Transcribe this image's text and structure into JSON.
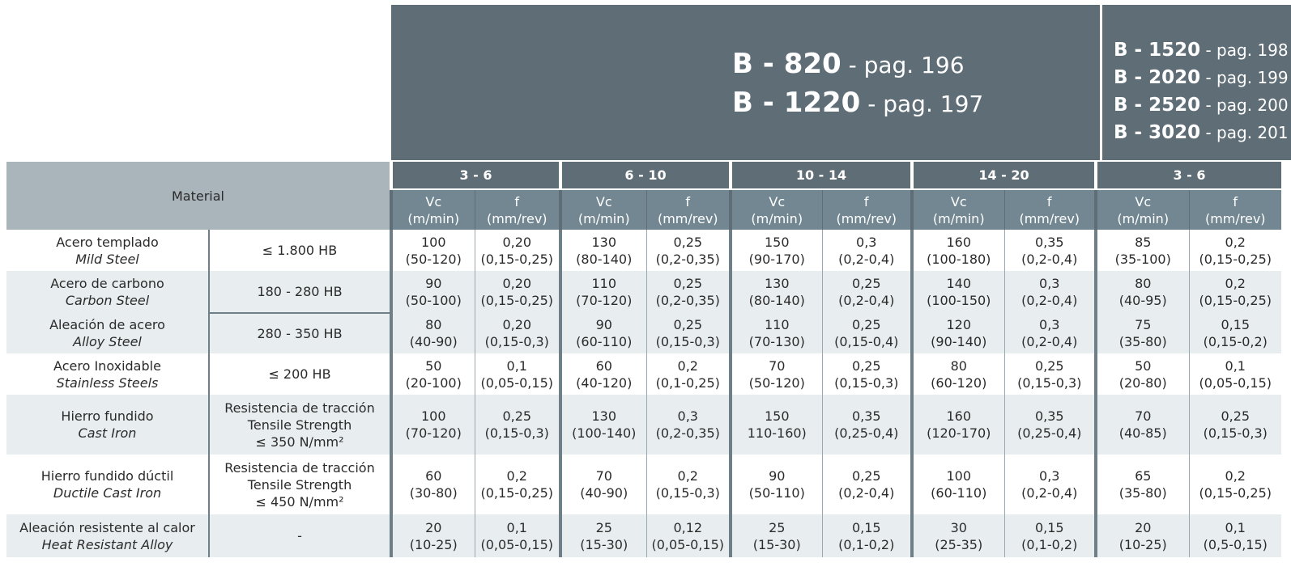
{
  "header": {
    "main_refs": [
      {
        "code": "B - 820",
        "page": " - pag. 196"
      },
      {
        "code": "B - 1220",
        "page": " - pag. 197"
      }
    ],
    "side_refs": [
      {
        "code": "B - 1520",
        "page": " - pag. 198"
      },
      {
        "code": "B - 2020",
        "page": " - pag. 199"
      },
      {
        "code": "B - 2520",
        "page": " - pag. 200"
      },
      {
        "code": "B - 3020",
        "page": " - pag. 201"
      }
    ]
  },
  "table": {
    "material_label": "Material",
    "diameter_ranges": [
      "3 - 6",
      "6 - 10",
      "10 - 14",
      "14 - 20",
      "3 - 6"
    ],
    "vc_label": "Vc",
    "vc_unit": "(m/min)",
    "f_label": "f",
    "f_unit": "(mm/rev)",
    "rows": [
      {
        "material_es": "Acero templado",
        "material_en": "Mild Steel",
        "hardness": [
          "≤ 1.800 HB"
        ],
        "values": [
          [
            "100",
            "(50-120)"
          ],
          [
            "0,20",
            "(0,15-0,25)"
          ],
          [
            "130",
            "(80-140)"
          ],
          [
            "0,25",
            "(0,2-0,35)"
          ],
          [
            "150",
            "(90-170)"
          ],
          [
            "0,3",
            "(0,2-0,4)"
          ],
          [
            "160",
            "(100-180)"
          ],
          [
            "0,35",
            "(0,2-0,4)"
          ],
          [
            "85",
            "(35-100)"
          ],
          [
            "0,2",
            "(0,15-0,25)"
          ]
        ]
      },
      {
        "material_es": "Acero de carbono",
        "material_en": "Carbon Steel",
        "hardness": [
          "180 - 280 HB"
        ],
        "values": [
          [
            "90",
            "(50-100)"
          ],
          [
            "0,20",
            "(0,15-0,25)"
          ],
          [
            "110",
            "(70-120)"
          ],
          [
            "0,25",
            "(0,2-0,35)"
          ],
          [
            "130",
            "(80-140)"
          ],
          [
            "0,25",
            "(0,2-0,4)"
          ],
          [
            "140",
            "(100-150)"
          ],
          [
            "0,3",
            "(0,2-0,4)"
          ],
          [
            "80",
            "(40-95)"
          ],
          [
            "0,2",
            "(0,15-0,25)"
          ]
        ]
      },
      {
        "material_es": "Aleación de acero",
        "material_en": "Alloy Steel",
        "hardness": [
          "280 - 350 HB"
        ],
        "values": [
          [
            "80",
            "(40-90)"
          ],
          [
            "0,20",
            "(0,15-0,3)"
          ],
          [
            "90",
            "(60-110)"
          ],
          [
            "0,25",
            "(0,15-0,3)"
          ],
          [
            "110",
            "(70-130)"
          ],
          [
            "0,25",
            "(0,15-0,4)"
          ],
          [
            "120",
            "(90-140)"
          ],
          [
            "0,3",
            "(0,2-0,4)"
          ],
          [
            "75",
            "(35-80)"
          ],
          [
            "0,15",
            "(0,15-0,2)"
          ]
        ]
      },
      {
        "material_es": "Acero Inoxidable",
        "material_en": "Stainless Steels",
        "hardness": [
          "≤ 200 HB"
        ],
        "values": [
          [
            "50",
            "(20-100)"
          ],
          [
            "0,1",
            "(0,05-0,15)"
          ],
          [
            "60",
            "(40-120)"
          ],
          [
            "0,2",
            "(0,1-0,25)"
          ],
          [
            "70",
            "(50-120)"
          ],
          [
            "0,25",
            "(0,15-0,3)"
          ],
          [
            "80",
            "(60-120)"
          ],
          [
            "0,25",
            "(0,15-0,3)"
          ],
          [
            "50",
            "(20-80)"
          ],
          [
            "0,1",
            "(0,05-0,15)"
          ]
        ]
      },
      {
        "material_es": "Hierro fundido",
        "material_en": "Cast Iron",
        "hardness": [
          "Resistencia de tracción",
          "Tensile Strength",
          "≤ 350 N/mm²"
        ],
        "values": [
          [
            "100",
            "(70-120)"
          ],
          [
            "0,25",
            "(0,15-0,3)"
          ],
          [
            "130",
            "(100-140)"
          ],
          [
            "0,3",
            "(0,2-0,35)"
          ],
          [
            "150",
            "110-160)"
          ],
          [
            "0,35",
            "(0,25-0,4)"
          ],
          [
            "160",
            "(120-170)"
          ],
          [
            "0,35",
            "(0,25-0,4)"
          ],
          [
            "70",
            "(40-85)"
          ],
          [
            "0,25",
            "(0,15-0,3)"
          ]
        ]
      },
      {
        "material_es": "Hierro fundido dúctil",
        "material_en": "Ductile Cast Iron",
        "hardness": [
          "Resistencia de tracción",
          "Tensile Strength",
          "≤ 450 N/mm²"
        ],
        "values": [
          [
            "60",
            "(30-80)"
          ],
          [
            "0,2",
            "(0,15-0,25)"
          ],
          [
            "70",
            "(40-90)"
          ],
          [
            "0,2",
            "(0,15-0,3)"
          ],
          [
            "90",
            "(50-110)"
          ],
          [
            "0,25",
            "(0,2-0,4)"
          ],
          [
            "100",
            "(60-110)"
          ],
          [
            "0,3",
            "(0,2-0,4)"
          ],
          [
            "65",
            "(35-80)"
          ],
          [
            "0,2",
            "(0,15-0,25)"
          ]
        ]
      },
      {
        "material_es": "Aleación resistente al calor",
        "material_en": "Heat Resistant Alloy",
        "hardness": [
          "-"
        ],
        "values": [
          [
            "20",
            "(10-25)"
          ],
          [
            "0,1",
            "(0,05-0,15)"
          ],
          [
            "25",
            "(15-30)"
          ],
          [
            "0,12",
            "(0,05-0,15)"
          ],
          [
            "25",
            "(15-30)"
          ],
          [
            "0,15",
            "(0,1-0,2)"
          ],
          [
            "30",
            "(25-35)"
          ],
          [
            "0,15",
            "(0,1-0,2)"
          ],
          [
            "20",
            "(10-25)"
          ],
          [
            "0,1",
            "(0,5-0,15)"
          ]
        ]
      }
    ]
  }
}
